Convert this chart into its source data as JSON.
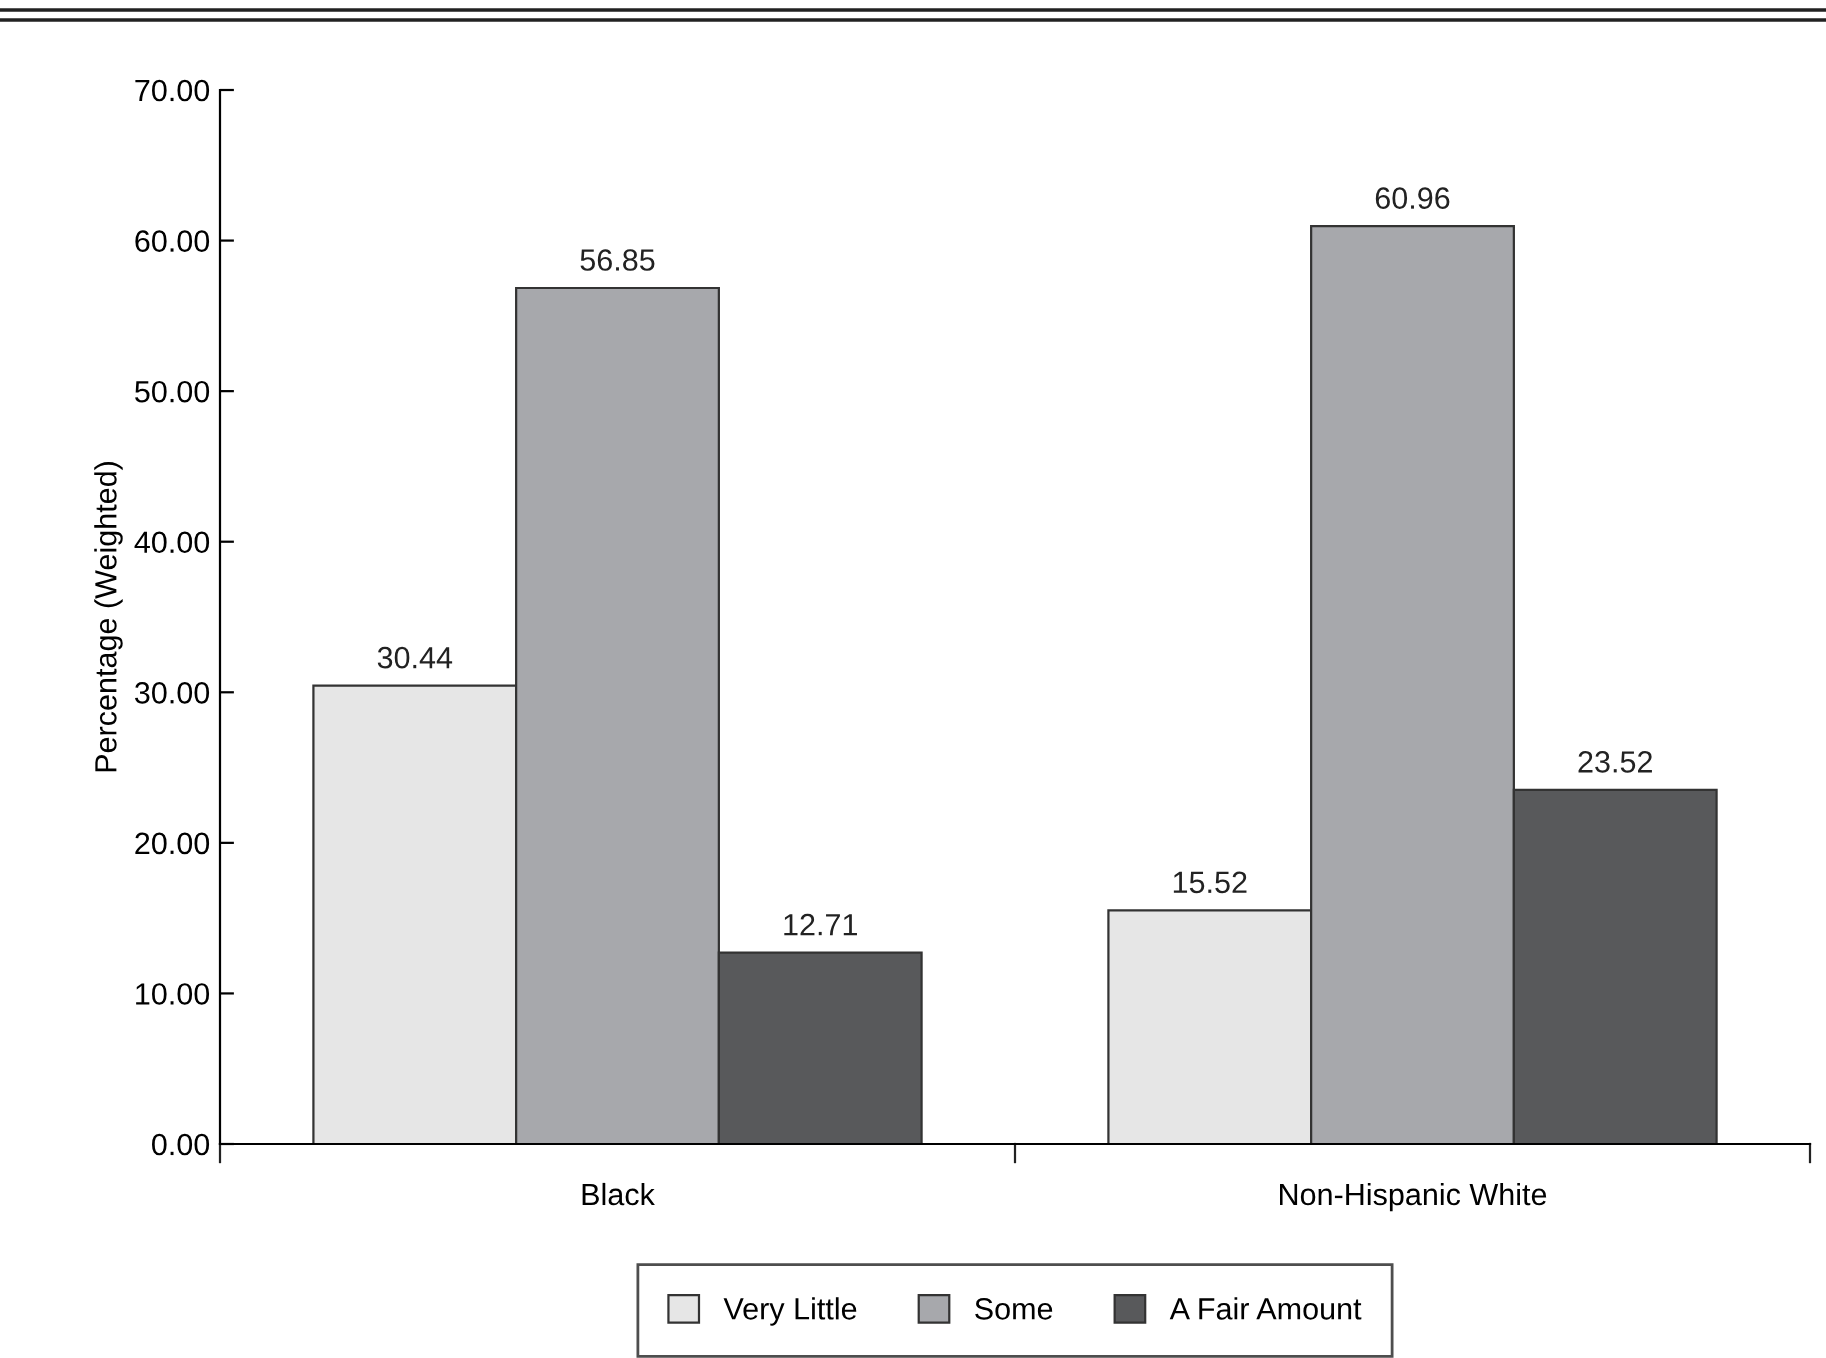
{
  "chart_data": {
    "type": "bar",
    "ylabel": "Percentage (Weighted)",
    "categories": [
      "Black",
      "Non-Hispanic White"
    ],
    "series": [
      {
        "name": "Very Little",
        "color": "#e6e6e6",
        "values": [
          30.44,
          15.52
        ]
      },
      {
        "name": "Some",
        "color": "#a7a8ac",
        "values": [
          56.85,
          60.96
        ]
      },
      {
        "name": "A Fair Amount",
        "color": "#58595b",
        "values": [
          12.71,
          23.52
        ]
      }
    ],
    "ylim": [
      0,
      70
    ],
    "yticks": [
      {
        "value": 0,
        "label": "0.00"
      },
      {
        "value": 10,
        "label": "10.00"
      },
      {
        "value": 20,
        "label": "20.00"
      },
      {
        "value": 30,
        "label": "30.00"
      },
      {
        "value": 40,
        "label": "40.00"
      },
      {
        "value": 50,
        "label": "50.00"
      },
      {
        "value": 60,
        "label": "60.00"
      },
      {
        "value": 70,
        "label": "70.00"
      }
    ],
    "data_labels": true,
    "grid": false,
    "legend": "bottom"
  }
}
